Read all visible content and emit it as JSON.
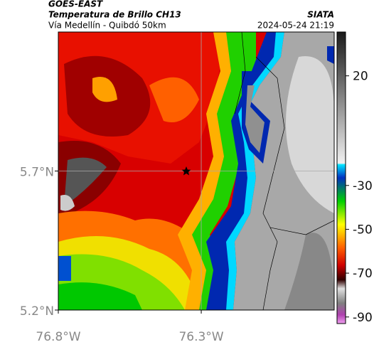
{
  "header": {
    "title": "GOES-EAST",
    "subtitle": "Temperatura de Brillo CH13",
    "route": "Vía Medellín - Quibdó 50km",
    "source": "SIATA",
    "datetime": "2024-05-24 21:19"
  },
  "map": {
    "xlim": [
      -76.8,
      -75.835
    ],
    "ylim": [
      5.2,
      6.2
    ],
    "xticks": [
      {
        "value": -76.8,
        "label": "76.8°W"
      },
      {
        "value": -76.3,
        "label": "76.3°W"
      }
    ],
    "yticks": [
      {
        "value": 5.7,
        "label": "5.7°N"
      },
      {
        "value": 5.2,
        "label": "5.2°N"
      }
    ]
  },
  "colorbar": {
    "lim": [
      -93,
      40
    ],
    "ticks": [
      20,
      -30,
      -50,
      -70,
      -90
    ]
  }
}
